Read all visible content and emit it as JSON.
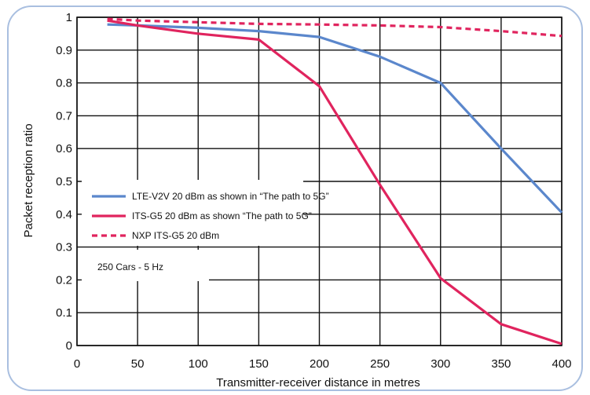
{
  "chart_data": {
    "type": "line",
    "xlabel": "Transmitter-receiver distance in metres",
    "ylabel": "Packet reception ratio",
    "xlim": [
      0,
      400
    ],
    "ylim": [
      0,
      1
    ],
    "x_ticks": [
      0,
      50,
      100,
      150,
      200,
      250,
      300,
      350,
      400
    ],
    "y_ticks": [
      0,
      0.1,
      0.2,
      0.3,
      0.4,
      0.5,
      0.6,
      0.7,
      0.8,
      0.9,
      1
    ],
    "grid": true,
    "legend_position": "middle-left",
    "annotation": "250 Cars - 5 Hz",
    "series": [
      {
        "name": "LTE-V2V 20 dBm as shown in “The path to 5G”",
        "color": "#5b87cc",
        "style": "solid",
        "x": [
          25,
          50,
          100,
          150,
          200,
          250,
          300,
          350,
          400
        ],
        "y": [
          0.978,
          0.975,
          0.968,
          0.958,
          0.94,
          0.88,
          0.8,
          0.6,
          0.405
        ]
      },
      {
        "name": "ITS-G5 20 dBm as shown “The path to 5G”",
        "color": "#e0245e",
        "style": "solid",
        "x": [
          25,
          50,
          100,
          150,
          200,
          250,
          300,
          350,
          400
        ],
        "y": [
          0.99,
          0.975,
          0.95,
          0.932,
          0.79,
          0.49,
          0.205,
          0.065,
          0.005
        ]
      },
      {
        "name": "NXP ITS-G5 20 dBm",
        "color": "#e0245e",
        "style": "dashed",
        "x": [
          25,
          50,
          100,
          150,
          200,
          250,
          300,
          350,
          400
        ],
        "y": [
          0.995,
          0.99,
          0.985,
          0.98,
          0.978,
          0.975,
          0.97,
          0.958,
          0.943
        ]
      }
    ]
  }
}
